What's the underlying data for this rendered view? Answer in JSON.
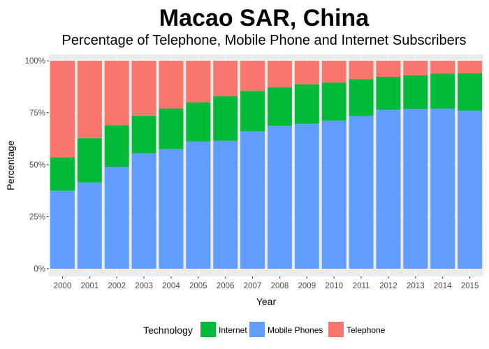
{
  "chart_data": {
    "type": "bar",
    "stacked": true,
    "normalized_percent": true,
    "title": "Macao SAR, China",
    "subtitle": "Percentage of Telephone, Mobile Phone and Internet Subscribers",
    "xlabel": "Year",
    "ylabel": "Percentage",
    "ylim": [
      0,
      100
    ],
    "y_ticks": [
      "0%",
      "25%",
      "50%",
      "75%",
      "100%"
    ],
    "y_tick_values": [
      0,
      25,
      50,
      75,
      100
    ],
    "categories": [
      "2000",
      "2001",
      "2002",
      "2003",
      "2004",
      "2005",
      "2006",
      "2007",
      "2008",
      "2009",
      "2010",
      "2011",
      "2012",
      "2013",
      "2014",
      "2015"
    ],
    "series": [
      {
        "name": "Mobile Phones",
        "color": "#619CFF",
        "values": [
          37.5,
          41.5,
          49.0,
          55.5,
          57.5,
          61.2,
          61.5,
          66.0,
          68.7,
          69.7,
          71.2,
          73.5,
          76.5,
          76.8,
          77.0,
          76.0
        ]
      },
      {
        "name": "Internet",
        "color": "#00BA38",
        "values": [
          16.0,
          21.3,
          20.0,
          18.0,
          19.5,
          18.8,
          21.5,
          19.5,
          18.5,
          19.0,
          18.3,
          17.7,
          15.8,
          16.2,
          16.8,
          18.0
        ]
      },
      {
        "name": "Telephone",
        "color": "#F8766D",
        "values": [
          46.5,
          37.2,
          31.0,
          26.5,
          23.0,
          20.0,
          17.0,
          14.5,
          12.8,
          11.3,
          10.5,
          8.8,
          7.7,
          7.0,
          6.2,
          6.0
        ]
      }
    ],
    "grid": true,
    "legend": {
      "title": "Technology",
      "placement": "bottom",
      "order": [
        "Internet",
        "Mobile Phones",
        "Telephone"
      ]
    },
    "background": "#EBEBEB"
  }
}
